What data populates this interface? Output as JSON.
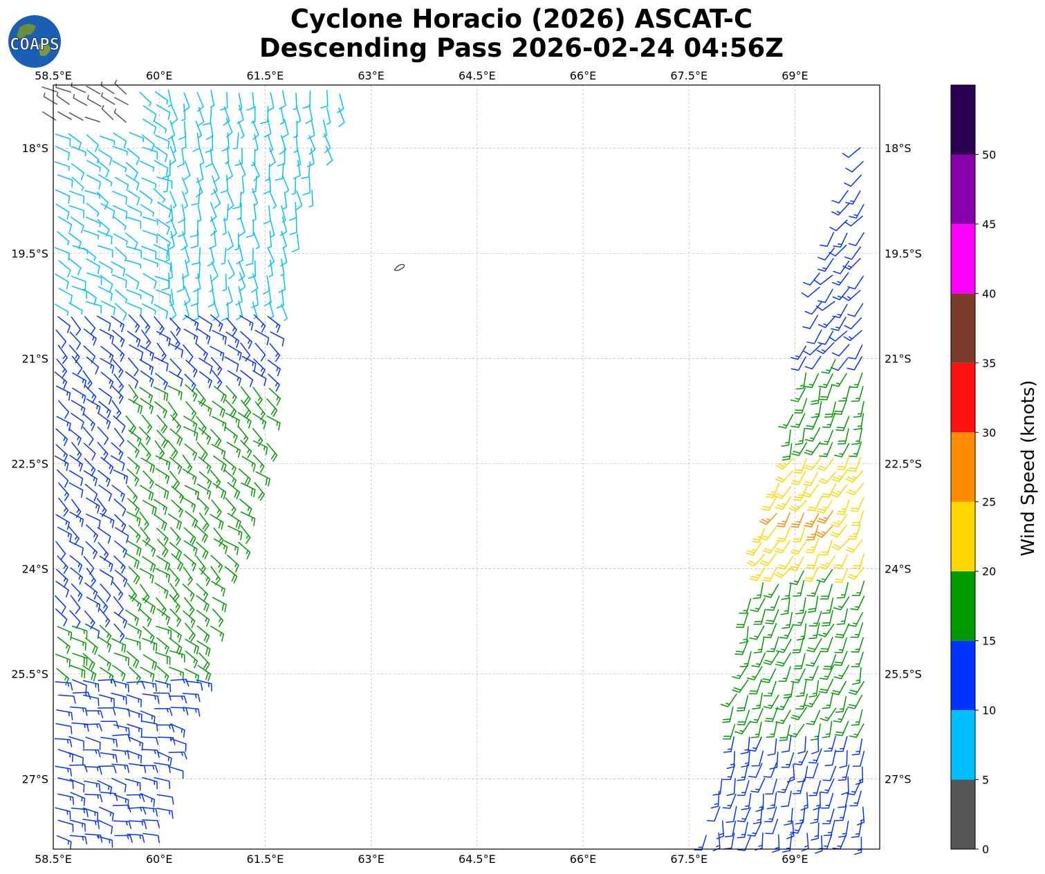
{
  "title": {
    "line1": "Cyclone Horacio (2026) ASCAT-C",
    "line2": "Descending Pass 2026-02-24 04:56Z"
  },
  "logo": {
    "text": "COAPS"
  },
  "map": {
    "lon_range": [
      58.5,
      70.2
    ],
    "lat_range": [
      -28.0,
      -17.1
    ],
    "lon_ticks": [
      "58.5°E",
      "60°E",
      "61.5°E",
      "63°E",
      "64.5°E",
      "66°E",
      "67.5°E",
      "69°E"
    ],
    "lon_tick_values": [
      58.5,
      60,
      61.5,
      63,
      64.5,
      66,
      67.5,
      69
    ],
    "lat_ticks": [
      "18°S",
      "19.5°S",
      "21°S",
      "22.5°S",
      "24°S",
      "25.5°S",
      "27°S"
    ],
    "lat_tick_values": [
      -18,
      -19.5,
      -21,
      -22.5,
      -24,
      -25.5,
      -27
    ],
    "grid": true,
    "coastline_feature": {
      "lon": 63.4,
      "lat": -19.7
    }
  },
  "colorbar": {
    "label": "Wind Speed (knots)",
    "ticks": [
      "0",
      "5",
      "10",
      "15",
      "20",
      "25",
      "30",
      "35",
      "40",
      "45",
      "50"
    ],
    "bins": [
      {
        "min": 0,
        "max": 5,
        "color": "#555555"
      },
      {
        "min": 5,
        "max": 10,
        "color": "#00bfff"
      },
      {
        "min": 10,
        "max": 15,
        "color": "#0033ff"
      },
      {
        "min": 15,
        "max": 20,
        "color": "#009900"
      },
      {
        "min": 20,
        "max": 25,
        "color": "#ffd700"
      },
      {
        "min": 25,
        "max": 30,
        "color": "#ff8c00"
      },
      {
        "min": 30,
        "max": 35,
        "color": "#ff1111"
      },
      {
        "min": 35,
        "max": 40,
        "color": "#7f3b29"
      },
      {
        "min": 40,
        "max": 45,
        "color": "#ff00ff"
      },
      {
        "min": 45,
        "max": 50,
        "color": "#8800aa"
      },
      {
        "min": 50,
        "max": 55,
        "color": "#2a0055"
      }
    ]
  },
  "swaths": [
    {
      "name": "west",
      "lats": [
        -17.1,
        -19.5,
        -21.0,
        -22.5,
        -24.0,
        -25.5,
        -27.0,
        -28.0
      ],
      "lon_min": [
        58.5,
        58.5,
        58.5,
        58.5,
        58.5,
        58.5,
        58.5,
        58.5
      ],
      "lon_max": [
        62.7,
        61.9,
        61.7,
        61.5,
        61.0,
        60.6,
        60.1,
        59.8
      ]
    },
    {
      "name": "east",
      "lats": [
        -17.1,
        -19.5,
        -21.0,
        -22.5,
        -24.0,
        -25.5,
        -27.0,
        -28.0
      ],
      "lon_min": [
        70.2,
        69.4,
        69.1,
        68.8,
        68.4,
        68.2,
        67.9,
        67.7
      ],
      "lon_max": [
        70.2,
        70.2,
        70.2,
        70.2,
        70.2,
        70.2,
        70.2,
        70.2
      ]
    }
  ],
  "wind_regions": [
    {
      "lat_min": -17.1,
      "lat_max": -20.8,
      "lon_min": 58.5,
      "lon_max": 60.0,
      "speed": 8,
      "dir": 120
    },
    {
      "lat_min": -17.1,
      "lat_max": -17.7,
      "lon_min": 58.5,
      "lon_max": 59.6,
      "speed": 3,
      "dir": 300
    },
    {
      "lat_min": -17.1,
      "lat_max": -20.3,
      "lon_min": 60.0,
      "lon_max": 62.7,
      "speed": 8,
      "dir": 170
    },
    {
      "lat_min": -20.3,
      "lat_max": -25.0,
      "lon_min": 58.5,
      "lon_max": 61.7,
      "speed": 13,
      "dir": 130
    },
    {
      "lat_min": -21.3,
      "lat_max": -25.8,
      "lon_min": 59.5,
      "lon_max": 61.7,
      "speed": 17,
      "dir": 130
    },
    {
      "lat_min": -24.8,
      "lat_max": -26.2,
      "lon_min": 58.5,
      "lon_max": 60.2,
      "speed": 17,
      "dir": 120
    },
    {
      "lat_min": -25.5,
      "lat_max": -28.0,
      "lon_min": 58.5,
      "lon_max": 60.6,
      "speed": 13,
      "dir": 100
    },
    {
      "lat_min": -17.1,
      "lat_max": -21.3,
      "lon_min": 68.9,
      "lon_max": 70.2,
      "speed": 12,
      "dir": 220
    },
    {
      "lat_min": -21.0,
      "lat_max": -22.8,
      "lon_min": 68.8,
      "lon_max": 70.2,
      "speed": 17,
      "dir": 200
    },
    {
      "lat_min": -22.3,
      "lat_max": -25.6,
      "lon_min": 68.3,
      "lon_max": 70.0,
      "speed": 22,
      "dir": 210
    },
    {
      "lat_min": -23.0,
      "lat_max": -23.4,
      "lon_min": 68.7,
      "lon_max": 69.6,
      "speed": 26,
      "dir": 210
    },
    {
      "lat_min": -24.0,
      "lat_max": -26.8,
      "lon_min": 67.9,
      "lon_max": 70.2,
      "speed": 17,
      "dir": 200
    },
    {
      "lat_min": -26.3,
      "lat_max": -28.0,
      "lon_min": 67.7,
      "lon_max": 70.2,
      "speed": 13,
      "dir": 190
    }
  ]
}
